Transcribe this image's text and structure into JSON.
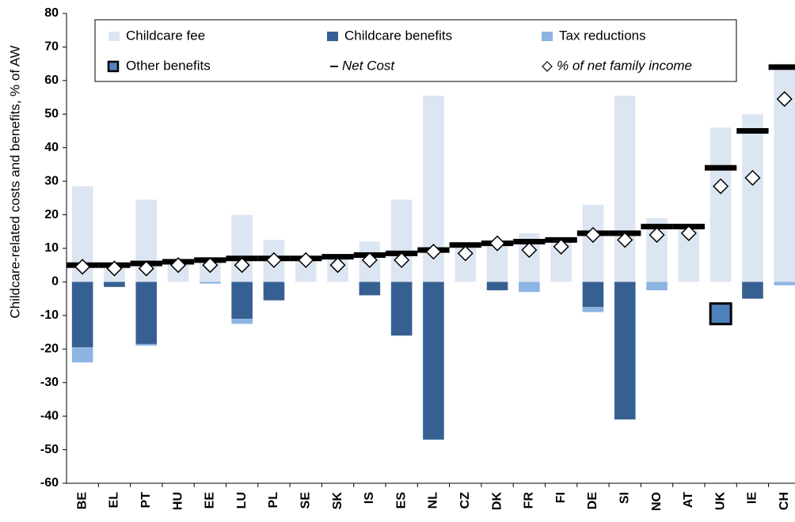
{
  "chart_data": {
    "type": "bar",
    "y_label": "Childcare-related costs and benefits, % of AW",
    "categories": [
      "BE",
      "EL",
      "PT",
      "HU",
      "EE",
      "LU",
      "PL",
      "SE",
      "SK",
      "IS",
      "ES",
      "NL",
      "CZ",
      "DK",
      "FR",
      "FI",
      "DE",
      "SI",
      "NO",
      "AT",
      "UK",
      "IE",
      "CH"
    ],
    "series": [
      {
        "name": "Childcare fee",
        "style": "bar",
        "color": "#dce6f2",
        "values": [
          28.5,
          5,
          24.5,
          6,
          7,
          20,
          12.5,
          7,
          7.5,
          12,
          24.5,
          55.5,
          11,
          12,
          14.5,
          12.5,
          23,
          55.5,
          19,
          17,
          46,
          50,
          65
        ]
      },
      {
        "name": "Childcare benefits",
        "style": "bar",
        "color": "#376092",
        "values": [
          -19.5,
          -1.5,
          -18.5,
          0,
          0,
          -11,
          -5.5,
          0,
          0,
          -4,
          -16,
          -47,
          0,
          -2.5,
          0,
          0,
          -7.5,
          -41,
          0,
          0,
          0,
          -5,
          0
        ]
      },
      {
        "name": "Tax reductions",
        "style": "bar",
        "color": "#8db4e2",
        "values": [
          -4.5,
          0,
          -0.5,
          0,
          -0.5,
          -1.5,
          0,
          0,
          0,
          0,
          0,
          0,
          0,
          0,
          -3,
          0,
          -1.5,
          0,
          -2.5,
          0,
          0,
          0,
          -1
        ]
      },
      {
        "name": "Other benefits",
        "style": "box",
        "color": "#4f81bd",
        "values": [
          null,
          null,
          null,
          null,
          null,
          null,
          null,
          null,
          null,
          null,
          null,
          null,
          null,
          null,
          null,
          null,
          null,
          null,
          null,
          null,
          -9.5,
          null,
          null
        ]
      },
      {
        "name": "Net Cost",
        "style": "dash",
        "italic": true,
        "color": "#000000",
        "values": [
          5,
          5,
          5.5,
          6,
          6.5,
          7,
          7,
          7,
          7.5,
          8,
          8.5,
          9.5,
          11,
          11.5,
          12,
          12.5,
          14.5,
          14.5,
          16.5,
          16.5,
          34,
          45,
          64
        ]
      },
      {
        "name": "% of net family income",
        "style": "diamond",
        "italic": true,
        "color": "#ffffff",
        "values": [
          4.5,
          4,
          4,
          5,
          5,
          5,
          6.5,
          6.5,
          5,
          6.5,
          6.5,
          9,
          8.5,
          11.5,
          9.5,
          10.5,
          14,
          12.5,
          14,
          14.5,
          28.5,
          31,
          54.5
        ]
      }
    ],
    "ylim": [
      -60,
      80
    ],
    "yticks": [
      -60,
      -50,
      -40,
      -30,
      -20,
      -10,
      0,
      10,
      20,
      30,
      40,
      50,
      60,
      70,
      80
    ]
  }
}
